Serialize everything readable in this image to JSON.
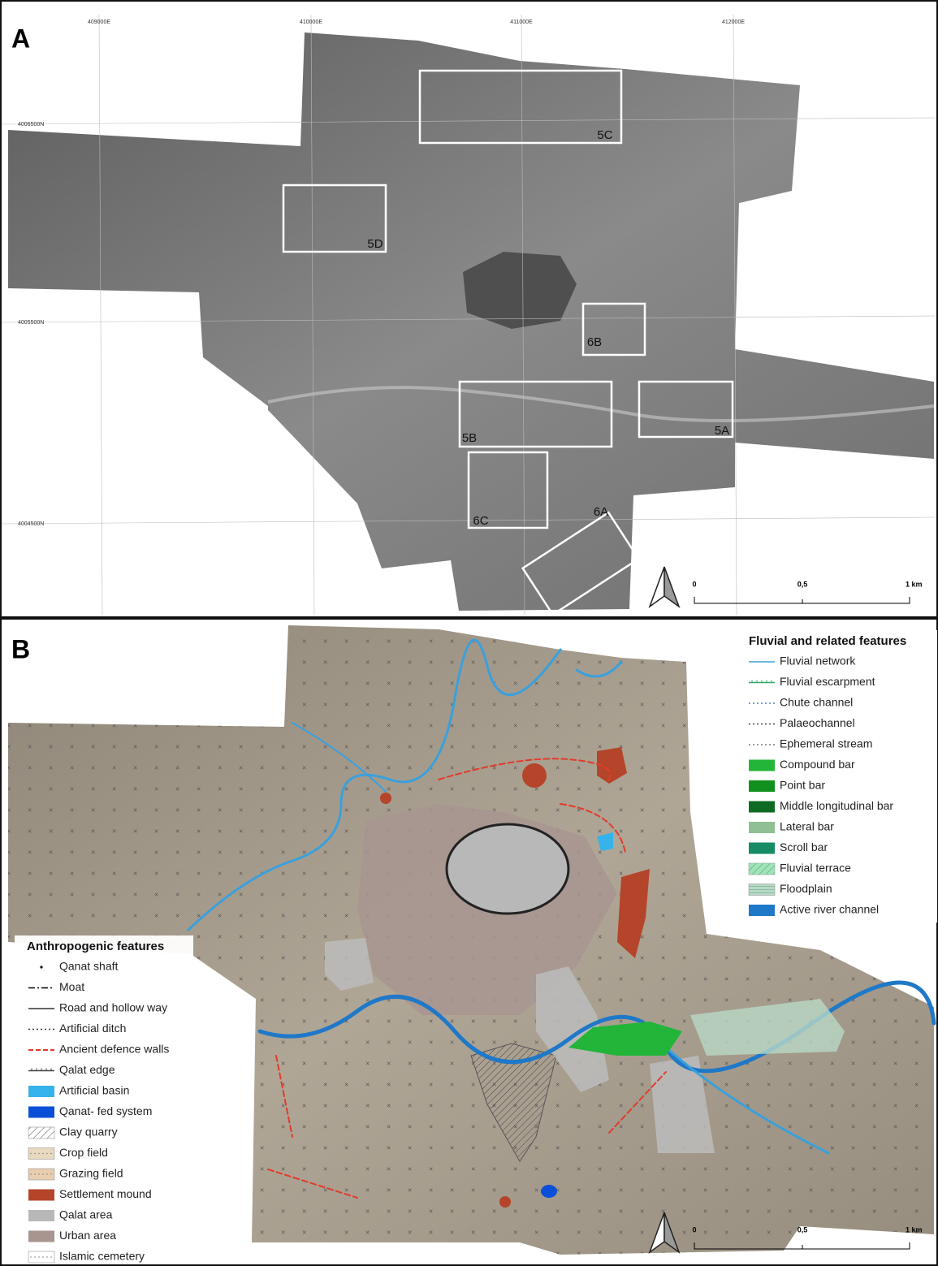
{
  "panels": [
    {
      "label": "A",
      "easting_labels": [
        "409000E",
        "410000E",
        "411000E",
        "412000E"
      ],
      "northing_labels": [
        "4006500N",
        "4005500N",
        "4004500N"
      ],
      "boxes": [
        "5C",
        "5D",
        "6B",
        "5B",
        "5A",
        "6C",
        "6A"
      ],
      "scale_labels": [
        "0",
        "0,5",
        "1 km"
      ]
    },
    {
      "label": "B",
      "legends": [
        {
          "title": "Fluvial and related features",
          "entries": [
            {
              "name": "Fluvial network",
              "symbol": "line",
              "color": "#3aa0dc"
            },
            {
              "name": "Fluvial escarpment",
              "symbol": "ticked",
              "color": "#2fa86a"
            },
            {
              "name": "Chute channel",
              "symbol": "dotted",
              "color": "#4a7fd0"
            },
            {
              "name": "Palaeochannel",
              "symbol": "dotted",
              "color": "#444444"
            },
            {
              "name": "Ephemeral stream",
              "symbol": "dotted",
              "color": "#7a7a7a"
            },
            {
              "name": "Compound bar",
              "symbol": "fill",
              "color": "#22b53a"
            },
            {
              "name": "Point bar",
              "symbol": "fill",
              "color": "#12901f"
            },
            {
              "name": "Middle longitudinal bar",
              "symbol": "fill",
              "color": "#0f6b24"
            },
            {
              "name": "Lateral bar",
              "symbol": "fill",
              "color": "#8fbf93"
            },
            {
              "name": "Scroll bar",
              "symbol": "fill",
              "color": "#178a66"
            },
            {
              "name": "Fluvial terrace",
              "symbol": "hatch",
              "color": "#5fd08a"
            },
            {
              "name": "Floodplain",
              "symbol": "lines",
              "color": "#b9d8c6"
            },
            {
              "name": "Active river channel",
              "symbol": "fill",
              "color": "#1f78c8"
            }
          ]
        },
        {
          "title": "Anthropogenic features",
          "entries": [
            {
              "name": "Qanat shaft",
              "symbol": "dot",
              "color": "#000000"
            },
            {
              "name": "Moat",
              "symbol": "dashdot",
              "color": "#000000"
            },
            {
              "name": "Road and hollow way",
              "symbol": "line",
              "color": "#333333"
            },
            {
              "name": "Artificial ditch",
              "symbol": "dotted",
              "color": "#333333"
            },
            {
              "name": "Ancient defence walls",
              "symbol": "dashed",
              "color": "#e23b2a"
            },
            {
              "name": "Qalat edge",
              "symbol": "ticked",
              "color": "#444444"
            },
            {
              "name": "Artificial basin",
              "symbol": "fill",
              "color": "#35b3ea"
            },
            {
              "name": "Qanat- fed system",
              "symbol": "fill",
              "color": "#0a4fd8"
            },
            {
              "name": "Clay quarry",
              "symbol": "hatch",
              "color": "#444444"
            },
            {
              "name": "Crop field",
              "symbol": "dots",
              "color": "#e8d8c0"
            },
            {
              "name": "Grazing field",
              "symbol": "dots",
              "color": "#e8cdb0"
            },
            {
              "name": "Settlement mound",
              "symbol": "fill",
              "color": "#b5452a"
            },
            {
              "name": "Qalat area",
              "symbol": "fill",
              "color": "#b8b8b8"
            },
            {
              "name": "Urban area",
              "symbol": "fill",
              "color": "#a89590"
            },
            {
              "name": "Islamic cemetery",
              "symbol": "dots",
              "color": "#ffffff"
            }
          ]
        }
      ],
      "scale_labels": [
        "0",
        "0,5",
        "1 km"
      ]
    }
  ]
}
